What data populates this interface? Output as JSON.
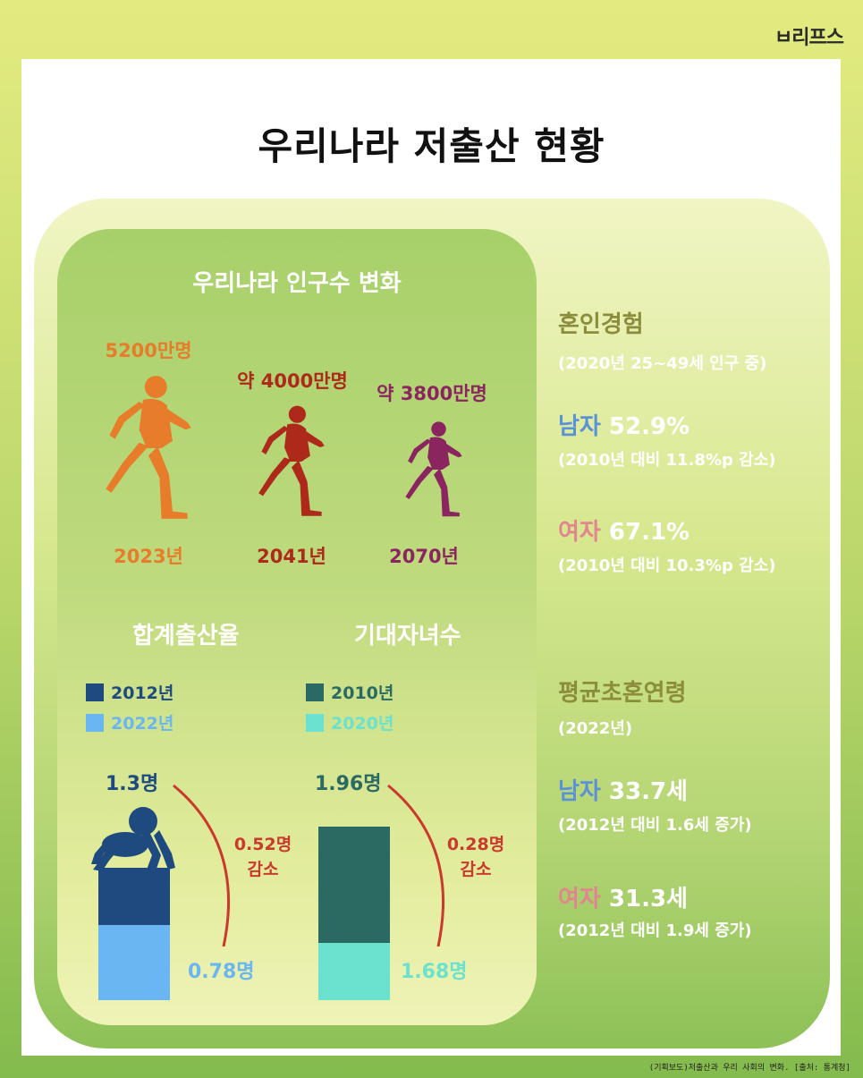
{
  "logo": "ㅂ리프스",
  "logo_small": "",
  "title": "우리나라 저출산 현황",
  "population": {
    "title": "우리나라 인구수 변화",
    "items": [
      {
        "value": "5200만명",
        "year": "2023년",
        "color": "#e77c2a"
      },
      {
        "value": "약 4000만명",
        "year": "2041년",
        "color": "#ad2a1a"
      },
      {
        "value": "약 3800만명",
        "year": "2070년",
        "color": "#8a2560"
      }
    ]
  },
  "fertility": {
    "title": "합계출산율",
    "legend": [
      {
        "label": "2012년",
        "color": "#1f4a80"
      },
      {
        "label": "2022년",
        "color": "#6ab6f2"
      }
    ],
    "value_2012": "1.3명",
    "value_2022": "0.78명",
    "decrease": "0.52명",
    "decrease_word": "감소"
  },
  "expected_children": {
    "title": "기대자녀수",
    "legend": [
      {
        "label": "2010년",
        "color": "#2a6a63"
      },
      {
        "label": "2020년",
        "color": "#6be1cf"
      }
    ],
    "value_2010": "1.96명",
    "value_2020": "1.68명",
    "decrease": "0.28명",
    "decrease_word": "감소"
  },
  "marriage": {
    "heading": "혼인경험",
    "sub": "(2020년 25~49세 인구 중)",
    "male_label": "남자",
    "male_value": "52.9%",
    "male_note": "(2010년 대비 11.8%p 감소)",
    "female_label": "여자",
    "female_value": "67.1%",
    "female_note": "(2010년 대비 10.3%p 감소)"
  },
  "first_marriage_age": {
    "heading": "평균초혼연령",
    "sub": "(2022년)",
    "male_label": "남자",
    "male_value": "33.7세",
    "male_note": "(2012년 대비 1.6세 증가)",
    "female_label": "여자",
    "female_value": "31.3세",
    "female_note": "(2012년 대비 1.9세 증가)"
  },
  "source": "(기획보도)저출산과 우리 사회의 변화. [출처: 통계청]"
}
